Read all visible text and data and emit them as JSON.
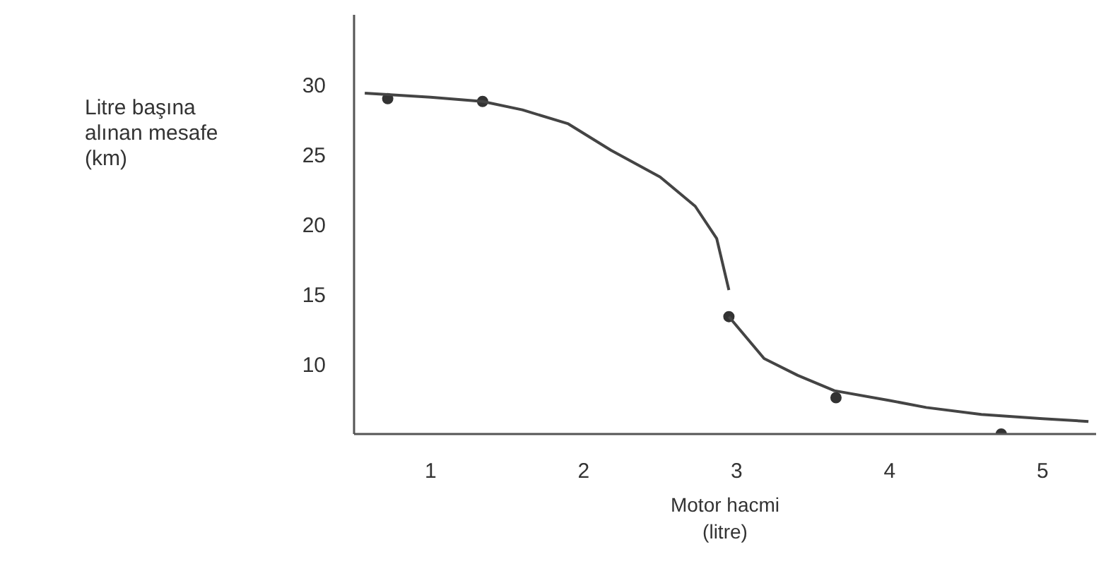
{
  "chart_data": {
    "type": "scatter",
    "xlabel": "Motor hacmi\n(litre)",
    "ylabel": "Litre başına\nalınan mesafe\n(km)",
    "xlim": [
      0.5,
      5.35
    ],
    "ylim": [
      5,
      35
    ],
    "xticks": [
      1,
      2,
      3,
      4,
      5
    ],
    "yticks": [
      10,
      15,
      20,
      25,
      30
    ],
    "grid": false,
    "marker": "circle",
    "series": [
      {
        "color": "#333333",
        "x": [
          0.72,
          1.34,
          2.95,
          3.65,
          4.73
        ],
        "values": [
          29,
          28.8,
          13.4,
          7.6,
          5
        ]
      },
      {
        "type": "line",
        "color": "#444444",
        "line_style": "solid",
        "marker": "none",
        "x": [
          0.57,
          1.0,
          1.34,
          1.6,
          1.9,
          2.18,
          2.5,
          2.73,
          2.87,
          2.95,
          null,
          2.95,
          3.18,
          3.4,
          3.64,
          4.0,
          4.24,
          4.6,
          5.0,
          5.3
        ],
        "values": [
          29.4,
          29.1,
          28.8,
          28.2,
          27.2,
          25.3,
          23.4,
          21.3,
          19.0,
          15.3,
          null,
          13.4,
          10.4,
          9.2,
          8.1,
          7.4,
          6.9,
          6.4,
          6.1,
          5.9
        ]
      }
    ]
  }
}
